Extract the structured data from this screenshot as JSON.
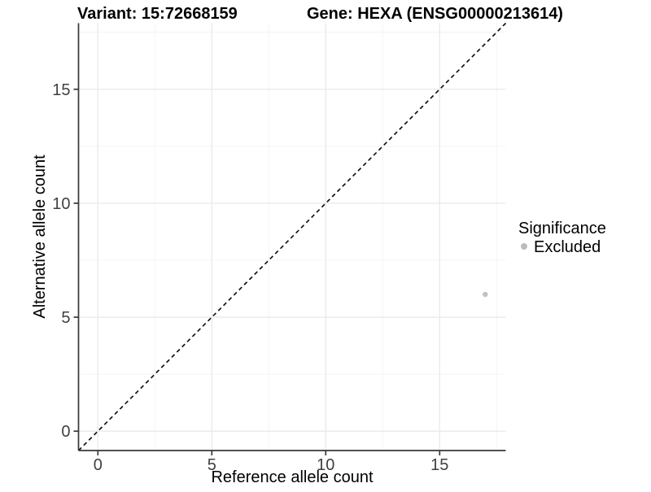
{
  "chart_data": {
    "type": "scatter",
    "title_left": "Variant: 15:72668159",
    "title_right": "Gene: HEXA (ENSG00000213614)",
    "xlabel": "Reference allele count",
    "ylabel": "Alternative allele count",
    "xlim": [
      -0.85,
      17.9
    ],
    "ylim": [
      -0.85,
      17.9
    ],
    "x_ticks": [
      0,
      5,
      10,
      15
    ],
    "y_ticks": [
      0,
      5,
      10,
      15
    ],
    "x_minor_ticks": [
      2.5,
      7.5,
      12.5,
      17.5
    ],
    "y_minor_ticks": [
      2.5,
      7.5,
      12.5,
      17.5
    ],
    "grid": "major and minor gridlines, very light gray on white",
    "legend": {
      "title": "Significance",
      "position": "right",
      "items": [
        {
          "label": "Excluded",
          "color": "#bcbcbc"
        }
      ]
    },
    "reference_line": {
      "type": "identity y=x",
      "style": "dashed",
      "color": "#141414"
    },
    "series": [
      {
        "name": "Excluded",
        "color": "#c0c0c0",
        "points": [
          {
            "x": 17,
            "y": 6
          }
        ]
      }
    ],
    "colors": {
      "axis": "#383838",
      "grid_major": "#e9e9e9",
      "grid_minor": "#f4f4f4",
      "tick_label": "#404040",
      "text": "#000000",
      "background": "#ffffff"
    }
  }
}
